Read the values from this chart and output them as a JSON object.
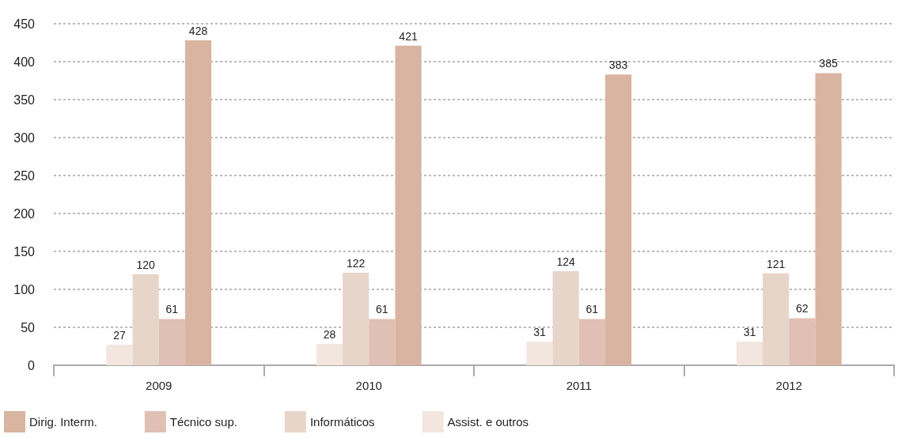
{
  "chart_data": {
    "type": "bar",
    "categories": [
      "2009",
      "2010",
      "2011",
      "2012"
    ],
    "series": [
      {
        "name": "Assist. e outros",
        "color": "#f2e6df",
        "values": [
          27,
          28,
          31,
          31
        ]
      },
      {
        "name": "Informáticos",
        "color": "#e8d5ca",
        "values": [
          120,
          122,
          124,
          121
        ]
      },
      {
        "name": "Técnico sup.",
        "color": "#e0c0b4",
        "values": [
          61,
          61,
          61,
          62
        ]
      },
      {
        "name": "Dirig. Interm.",
        "color": "#d9b4a0",
        "values": [
          428,
          421,
          383,
          385
        ]
      }
    ],
    "ylim": [
      0,
      450
    ],
    "yticks": [
      0,
      50,
      100,
      150,
      200,
      250,
      300,
      350,
      400,
      450
    ],
    "grid": "y",
    "legend": "bottom left",
    "data_labels": true
  }
}
